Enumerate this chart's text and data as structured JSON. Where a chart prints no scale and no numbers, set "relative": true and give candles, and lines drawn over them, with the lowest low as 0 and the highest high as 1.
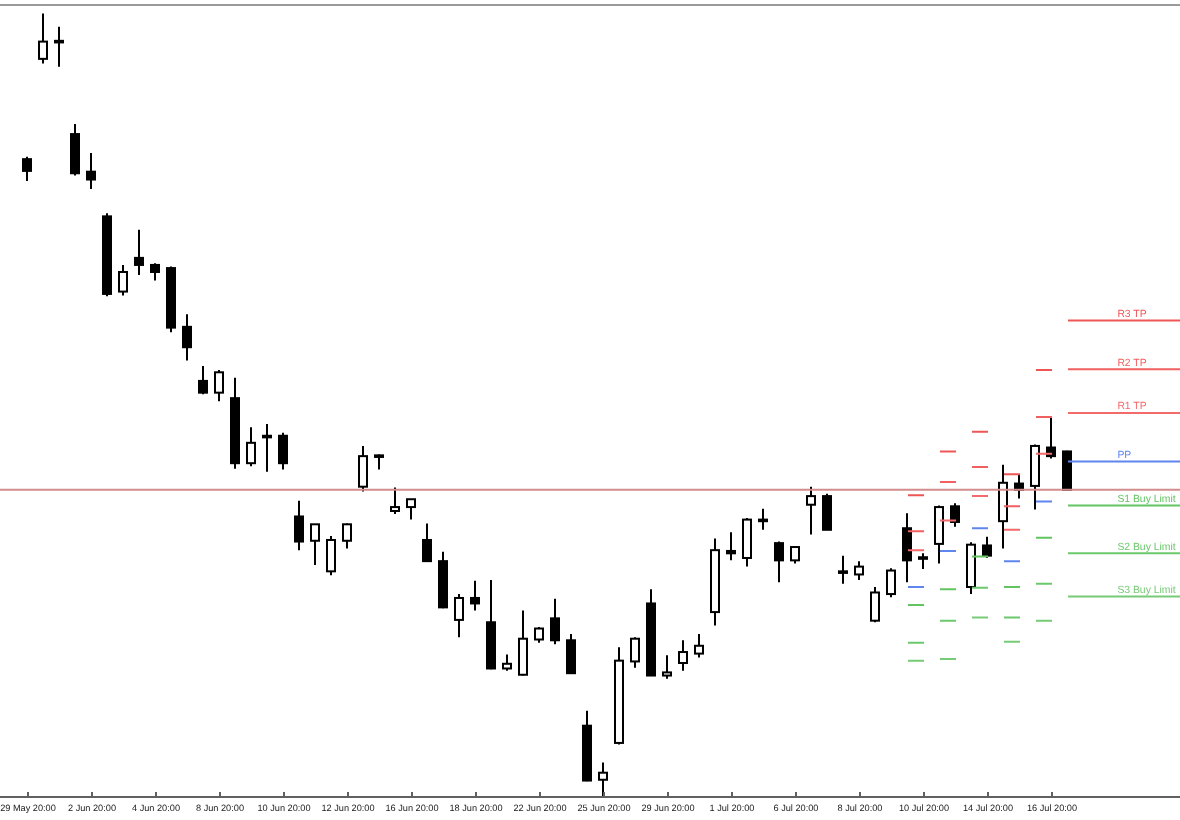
{
  "chart_data": {
    "type": "candlestick",
    "relative": true,
    "color": "#000000",
    "categories": [
      "29 May 20:00",
      null,
      null,
      null,
      "2 Jun 20:00",
      null,
      null,
      null,
      "4 Jun 20:00",
      null,
      null,
      null,
      "8 Jun 20:00",
      null,
      null,
      null,
      "10 Jun 20:00",
      null,
      null,
      null,
      "12 Jun 20:00",
      null,
      null,
      null,
      "16 Jun 20:00",
      null,
      null,
      null,
      "18 Jun 20:00",
      null,
      null,
      null,
      "22 Jun 20:00",
      null,
      null,
      null,
      "25 Jun 20:00",
      null,
      null,
      null,
      "29 Jun 20:00",
      null,
      null,
      null,
      "1 Jul 20:00",
      null,
      null,
      null,
      "6 Jul 20:00",
      null,
      null,
      null,
      "8 Jul 20:00",
      null,
      null,
      null,
      "10 Jul 20:00",
      null,
      null,
      null,
      "14 Jul 20:00",
      null,
      null,
      null,
      "16 Jul 20:00",
      null,
      null,
      null,
      null,
      null,
      null,
      null,
      null
    ],
    "ohlc": [
      [
        0.814,
        0.817,
        0.786,
        0.799
      ],
      [
        0.942,
        1,
        0.936,
        0.964
      ],
      [
        0.965,
        0.983,
        0.932,
        0.963
      ],
      [
        0.846,
        0.859,
        0.793,
        0.796
      ],
      [
        0.798,
        0.822,
        0.776,
        0.788
      ],
      [
        0.741,
        0.745,
        0.639,
        0.642
      ],
      [
        0.645,
        0.679,
        0.64,
        0.67
      ],
      [
        0.688,
        0.724,
        0.666,
        0.679
      ],
      [
        0.679,
        0.681,
        0.659,
        0.67
      ],
      [
        0.675,
        0.677,
        0.593,
        0.599
      ],
      [
        0.6,
        0.616,
        0.557,
        0.574
      ],
      [
        0.531,
        0.55,
        0.514,
        0.516
      ],
      [
        0.516,
        0.545,
        0.505,
        0.542
      ],
      [
        0.509,
        0.535,
        0.419,
        0.426
      ],
      [
        0.426,
        0.472,
        0.422,
        0.452
      ],
      [
        0.461,
        0.476,
        0.415,
        0.461
      ],
      [
        0.461,
        0.465,
        0.418,
        0.426
      ],
      [
        0.358,
        0.378,
        0.315,
        0.326
      ],
      [
        0.327,
        0.348,
        0.296,
        0.348
      ],
      [
        0.288,
        0.333,
        0.283,
        0.328
      ],
      [
        0.327,
        0.349,
        0.317,
        0.348
      ],
      [
        0.396,
        0.448,
        0.39,
        0.435
      ],
      [
        0.436,
        0.437,
        0.418,
        0.435
      ],
      [
        0.365,
        0.395,
        0.361,
        0.37
      ],
      [
        0.37,
        0.38,
        0.354,
        0.38
      ],
      [
        0.328,
        0.349,
        0.3,
        0.301
      ],
      [
        0.301,
        0.313,
        0.241,
        0.242
      ],
      [
        0.226,
        0.259,
        0.204,
        0.254
      ],
      [
        0.254,
        0.276,
        0.238,
        0.247
      ],
      [
        0.223,
        0.277,
        0.163,
        0.164
      ],
      [
        0.164,
        0.182,
        0.161,
        0.17
      ],
      [
        0.156,
        0.238,
        0.155,
        0.202
      ],
      [
        0.201,
        0.217,
        0.197,
        0.215
      ],
      [
        0.228,
        0.253,
        0.195,
        0.2
      ],
      [
        0.2,
        0.208,
        0.157,
        0.158
      ],
      [
        0.091,
        0.11,
        0.02,
        0.021
      ],
      [
        0.022,
        0.044,
        0,
        0.031
      ],
      [
        0.069,
        0.191,
        0.067,
        0.174
      ],
      [
        0.173,
        0.204,
        0.165,
        0.202
      ],
      [
        0.247,
        0.265,
        0.155,
        0.155
      ],
      [
        0.155,
        0.181,
        0.151,
        0.159
      ],
      [
        0.171,
        0.2,
        0.161,
        0.185
      ],
      [
        0.183,
        0.208,
        0.178,
        0.193
      ],
      [
        0.236,
        0.33,
        0.219,
        0.315
      ],
      [
        0.314,
        0.338,
        0.302,
        0.311
      ],
      [
        0.305,
        0.356,
        0.294,
        0.354
      ],
      [
        0.354,
        0.368,
        0.341,
        0.353
      ],
      [
        0.324,
        0.326,
        0.274,
        0.302
      ],
      [
        0.302,
        0.319,
        0.298,
        0.319
      ],
      [
        0.373,
        0.396,
        0.335,
        0.384
      ],
      [
        0.384,
        0.387,
        0.341,
        0.341
      ],
      [
        0.288,
        0.308,
        0.272,
        0.287
      ],
      [
        0.284,
        0.301,
        0.277,
        0.294
      ],
      [
        0.225,
        0.268,
        0.223,
        0.261
      ],
      [
        0.259,
        0.292,
        0.255,
        0.289
      ],
      [
        0.343,
        0.362,
        0.274,
        0.302
      ],
      [
        0.306,
        0.311,
        0.291,
        0.304
      ],
      [
        0.323,
        0.372,
        0.298,
        0.37
      ],
      [
        0.371,
        0.375,
        0.345,
        0.351
      ],
      [
        0.268,
        0.325,
        0.259,
        0.322
      ],
      [
        0.321,
        0.332,
        0.305,
        0.308
      ],
      [
        0.352,
        0.424,
        0.317,
        0.401
      ],
      [
        0.4,
        0.411,
        0.381,
        0.392
      ],
      [
        0.397,
        0.45,
        0.367,
        0.448
      ],
      [
        0.446,
        0.484,
        0.432,
        0.435
      ],
      [
        0.441,
        0.442,
        0.392,
        0.392
      ],
      null,
      null,
      null,
      null,
      null,
      null,
      null
    ],
    "series": [
      {
        "type": "line",
        "color": "#ee5656",
        "values": [
          null,
          null,
          null,
          null,
          null,
          null,
          null,
          null,
          null,
          null,
          null,
          null,
          null,
          null,
          null,
          null,
          null,
          null,
          null,
          null,
          null,
          null,
          null,
          null,
          null,
          null,
          null,
          null,
          null,
          null,
          null,
          null,
          null,
          null,
          null,
          null,
          null,
          null,
          null,
          null,
          null,
          null,
          null,
          null,
          null,
          null,
          null,
          null,
          null,
          null,
          null,
          null,
          null,
          null,
          null,
          0.385,
          0.385,
          null,
          null,
          0.466,
          0.466,
          null,
          null,
          0.545,
          0.545,
          null,
          null,
          null,
          null,
          null,
          null,
          null,
          null
        ]
      },
      {
        "type": "line",
        "name": "R3 TP",
        "color": "#ee5656",
        "values": [
          null,
          null,
          null,
          null,
          null,
          null,
          null,
          null,
          null,
          null,
          null,
          null,
          null,
          null,
          null,
          null,
          null,
          null,
          null,
          null,
          null,
          null,
          null,
          null,
          null,
          null,
          null,
          null,
          null,
          null,
          null,
          null,
          null,
          null,
          null,
          null,
          null,
          null,
          null,
          null,
          null,
          null,
          null,
          null,
          null,
          null,
          null,
          null,
          null,
          null,
          null,
          null,
          null,
          null,
          null,
          null,
          null,
          0.441,
          0.441,
          null,
          null,
          0.412,
          0.412,
          null,
          null,
          0.608,
          0.608,
          0.608,
          0.608,
          0.608,
          0.608,
          0.608,
          0.608
        ]
      },
      {
        "type": "line",
        "color": "#f06060",
        "values": [
          null,
          null,
          null,
          null,
          null,
          null,
          null,
          null,
          null,
          null,
          null,
          null,
          null,
          null,
          null,
          null,
          null,
          null,
          null,
          null,
          null,
          null,
          null,
          null,
          null,
          null,
          null,
          null,
          null,
          null,
          null,
          null,
          null,
          null,
          null,
          null,
          null,
          null,
          null,
          null,
          null,
          null,
          null,
          null,
          null,
          null,
          null,
          null,
          null,
          null,
          null,
          null,
          null,
          null,
          null,
          0.339,
          0.339,
          null,
          null,
          0.421,
          0.421,
          null,
          null,
          0.485,
          0.485,
          null,
          null,
          null,
          null,
          null,
          null,
          null,
          null
        ]
      },
      {
        "type": "line",
        "name": "R2 TP",
        "color": "#f06060",
        "values": [
          null,
          null,
          null,
          null,
          null,
          null,
          null,
          null,
          null,
          null,
          null,
          null,
          null,
          null,
          null,
          null,
          null,
          null,
          null,
          null,
          null,
          null,
          null,
          null,
          null,
          null,
          null,
          null,
          null,
          null,
          null,
          null,
          null,
          null,
          null,
          null,
          null,
          null,
          null,
          null,
          null,
          null,
          null,
          null,
          null,
          null,
          null,
          null,
          null,
          null,
          null,
          null,
          null,
          null,
          null,
          null,
          null,
          0.402,
          0.402,
          null,
          null,
          0.371,
          0.371,
          null,
          null,
          0.546,
          0.546,
          0.546,
          0.546,
          0.546,
          0.546,
          0.546,
          0.546
        ]
      },
      {
        "type": "line",
        "color": "#f26a6a",
        "values": [
          null,
          null,
          null,
          null,
          null,
          null,
          null,
          null,
          null,
          null,
          null,
          null,
          null,
          null,
          null,
          null,
          null,
          null,
          null,
          null,
          null,
          null,
          null,
          null,
          null,
          null,
          null,
          null,
          null,
          null,
          null,
          null,
          null,
          null,
          null,
          null,
          null,
          null,
          null,
          null,
          null,
          null,
          null,
          null,
          null,
          null,
          null,
          null,
          null,
          null,
          null,
          null,
          null,
          null,
          null,
          0.315,
          0.315,
          null,
          null,
          0.384,
          0.384,
          null,
          null,
          0.438,
          0.438,
          null,
          null,
          null,
          null,
          null,
          null,
          null,
          null
        ]
      },
      {
        "type": "line",
        "name": "R1 TP",
        "color": "#f26a6a",
        "values": [
          null,
          null,
          null,
          null,
          null,
          null,
          null,
          null,
          null,
          null,
          null,
          null,
          null,
          null,
          null,
          null,
          null,
          null,
          null,
          null,
          null,
          null,
          null,
          null,
          null,
          null,
          null,
          null,
          null,
          null,
          null,
          null,
          null,
          null,
          null,
          null,
          null,
          null,
          null,
          null,
          null,
          null,
          null,
          null,
          null,
          null,
          null,
          null,
          null,
          null,
          null,
          null,
          null,
          null,
          null,
          null,
          null,
          0.353,
          0.353,
          null,
          null,
          0.341,
          0.341,
          null,
          null,
          0.49,
          0.49,
          0.49,
          0.49,
          0.49,
          0.49,
          0.49,
          0.49
        ]
      },
      {
        "type": "line",
        "color": "#5f86ee",
        "values": [
          null,
          null,
          null,
          null,
          null,
          null,
          null,
          null,
          null,
          null,
          null,
          null,
          null,
          null,
          null,
          null,
          null,
          null,
          null,
          null,
          null,
          null,
          null,
          null,
          null,
          null,
          null,
          null,
          null,
          null,
          null,
          null,
          null,
          null,
          null,
          null,
          null,
          null,
          null,
          null,
          null,
          null,
          null,
          null,
          null,
          null,
          null,
          null,
          null,
          null,
          null,
          null,
          null,
          null,
          null,
          0.268,
          0.268,
          null,
          null,
          0.343,
          0.343,
          null,
          null,
          0.377,
          0.377,
          null,
          null,
          null,
          null,
          null,
          null,
          null,
          null
        ]
      },
      {
        "type": "line",
        "name": "PP",
        "color": "#5f86ee",
        "values": [
          null,
          null,
          null,
          null,
          null,
          null,
          null,
          null,
          null,
          null,
          null,
          null,
          null,
          null,
          null,
          null,
          null,
          null,
          null,
          null,
          null,
          null,
          null,
          null,
          null,
          null,
          null,
          null,
          null,
          null,
          null,
          null,
          null,
          null,
          null,
          null,
          null,
          null,
          null,
          null,
          null,
          null,
          null,
          null,
          null,
          null,
          null,
          null,
          null,
          null,
          null,
          null,
          null,
          null,
          null,
          null,
          null,
          0.314,
          0.314,
          null,
          null,
          0.301,
          0.301,
          null,
          null,
          0.428,
          0.428,
          0.428,
          0.428,
          0.428,
          0.428,
          0.428,
          0.428
        ]
      },
      {
        "type": "line",
        "color": "#62c562",
        "values": [
          null,
          null,
          null,
          null,
          null,
          null,
          null,
          null,
          null,
          null,
          null,
          null,
          null,
          null,
          null,
          null,
          null,
          null,
          null,
          null,
          null,
          null,
          null,
          null,
          null,
          null,
          null,
          null,
          null,
          null,
          null,
          null,
          null,
          null,
          null,
          null,
          null,
          null,
          null,
          null,
          null,
          null,
          null,
          null,
          null,
          null,
          null,
          null,
          null,
          null,
          null,
          null,
          null,
          null,
          null,
          0.245,
          0.245,
          null,
          null,
          0.307,
          0.307,
          null,
          null,
          0.331,
          0.331,
          null,
          null,
          null,
          null,
          null,
          null,
          null,
          null
        ]
      },
      {
        "type": "line",
        "name": "S1 Buy Limit",
        "color": "#62c562",
        "values": [
          null,
          null,
          null,
          null,
          null,
          null,
          null,
          null,
          null,
          null,
          null,
          null,
          null,
          null,
          null,
          null,
          null,
          null,
          null,
          null,
          null,
          null,
          null,
          null,
          null,
          null,
          null,
          null,
          null,
          null,
          null,
          null,
          null,
          null,
          null,
          null,
          null,
          null,
          null,
          null,
          null,
          null,
          null,
          null,
          null,
          null,
          null,
          null,
          null,
          null,
          null,
          null,
          null,
          null,
          null,
          null,
          null,
          0.265,
          0.265,
          null,
          null,
          0.268,
          0.268,
          null,
          null,
          0.372,
          0.372,
          0.372,
          0.372,
          0.372,
          0.372,
          0.372,
          0.372
        ]
      },
      {
        "type": "line",
        "color": "#6cc86c",
        "values": [
          null,
          null,
          null,
          null,
          null,
          null,
          null,
          null,
          null,
          null,
          null,
          null,
          null,
          null,
          null,
          null,
          null,
          null,
          null,
          null,
          null,
          null,
          null,
          null,
          null,
          null,
          null,
          null,
          null,
          null,
          null,
          null,
          null,
          null,
          null,
          null,
          null,
          null,
          null,
          null,
          null,
          null,
          null,
          null,
          null,
          null,
          null,
          null,
          null,
          null,
          null,
          null,
          null,
          null,
          null,
          0.197,
          0.197,
          null,
          null,
          0.267,
          0.267,
          null,
          null,
          0.272,
          0.272,
          null,
          null,
          null,
          null,
          null,
          null,
          null,
          null
        ]
      },
      {
        "type": "line",
        "name": "S2 Buy Limit",
        "color": "#6cc86c",
        "values": [
          null,
          null,
          null,
          null,
          null,
          null,
          null,
          null,
          null,
          null,
          null,
          null,
          null,
          null,
          null,
          null,
          null,
          null,
          null,
          null,
          null,
          null,
          null,
          null,
          null,
          null,
          null,
          null,
          null,
          null,
          null,
          null,
          null,
          null,
          null,
          null,
          null,
          null,
          null,
          null,
          null,
          null,
          null,
          null,
          null,
          null,
          null,
          null,
          null,
          null,
          null,
          null,
          null,
          null,
          null,
          null,
          null,
          0.225,
          0.225,
          null,
          null,
          0.229,
          0.229,
          null,
          null,
          0.311,
          0.311,
          0.311,
          0.311,
          0.311,
          0.311,
          0.311,
          0.311
        ]
      },
      {
        "type": "line",
        "color": "#76cb76",
        "values": [
          null,
          null,
          null,
          null,
          null,
          null,
          null,
          null,
          null,
          null,
          null,
          null,
          null,
          null,
          null,
          null,
          null,
          null,
          null,
          null,
          null,
          null,
          null,
          null,
          null,
          null,
          null,
          null,
          null,
          null,
          null,
          null,
          null,
          null,
          null,
          null,
          null,
          null,
          null,
          null,
          null,
          null,
          null,
          null,
          null,
          null,
          null,
          null,
          null,
          null,
          null,
          null,
          null,
          null,
          null,
          0.174,
          0.174,
          null,
          null,
          0.229,
          0.229,
          null,
          null,
          0.225,
          0.225,
          null,
          null,
          null,
          null,
          null,
          null,
          null,
          null
        ]
      },
      {
        "type": "line",
        "name": "S3 Buy Limit",
        "color": "#76cb76",
        "values": [
          null,
          null,
          null,
          null,
          null,
          null,
          null,
          null,
          null,
          null,
          null,
          null,
          null,
          null,
          null,
          null,
          null,
          null,
          null,
          null,
          null,
          null,
          null,
          null,
          null,
          null,
          null,
          null,
          null,
          null,
          null,
          null,
          null,
          null,
          null,
          null,
          null,
          null,
          null,
          null,
          null,
          null,
          null,
          null,
          null,
          null,
          null,
          null,
          null,
          null,
          null,
          null,
          null,
          null,
          null,
          null,
          null,
          0.176,
          0.176,
          null,
          null,
          0.198,
          0.198,
          null,
          null,
          0.256,
          0.256,
          0.256,
          0.256,
          0.256,
          0.256,
          0.256,
          0.256
        ]
      }
    ],
    "ref_lines": [
      {
        "axis": "y",
        "value": 0.392,
        "color": "#d28c8c"
      }
    ]
  }
}
